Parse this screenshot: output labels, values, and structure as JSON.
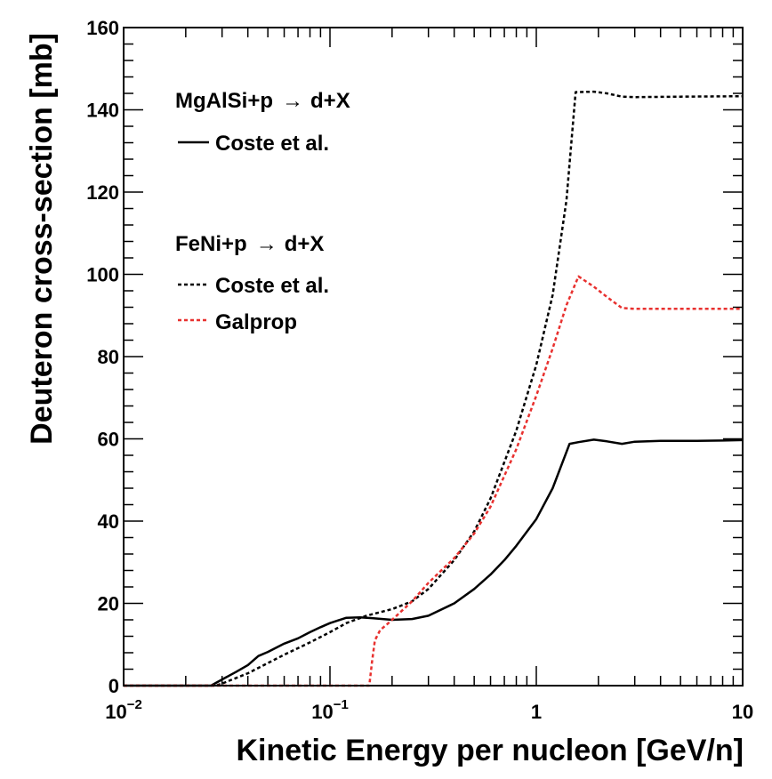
{
  "chart_data": {
    "type": "line",
    "title": "",
    "xlabel": "Kinetic Energy per nucleon [GeV/n]",
    "ylabel": "Deuteron cross-section [mb]",
    "xscale": "log",
    "xlim": [
      0.01,
      10
    ],
    "ylim": [
      0,
      160
    ],
    "grid": false,
    "x_ticks": [
      {
        "value": 0.01,
        "base": "10",
        "exp": "−2"
      },
      {
        "value": 0.1,
        "base": "10",
        "exp": "−1"
      },
      {
        "value": 1,
        "base": "1",
        "exp": ""
      },
      {
        "value": 10,
        "base": "10",
        "exp": ""
      }
    ],
    "y_ticks": [
      {
        "value": 0,
        "label": "0"
      },
      {
        "value": 20,
        "label": "20"
      },
      {
        "value": 40,
        "label": "40"
      },
      {
        "value": 60,
        "label": "60"
      },
      {
        "value": 80,
        "label": "80"
      },
      {
        "value": 100,
        "label": "100"
      },
      {
        "value": 120,
        "label": "120"
      },
      {
        "value": 140,
        "label": "140"
      },
      {
        "value": 160,
        "label": "160"
      }
    ],
    "legend": {
      "placement": "top-left",
      "groups": [
        {
          "header": "MgAlSi+p",
          "arrow": "→",
          "product": "d+X",
          "entries": [
            {
              "label": "Coste et al.",
              "series": 0
            }
          ]
        },
        {
          "header": "FeNi+p",
          "arrow": "→",
          "product": "d+X",
          "entries": [
            {
              "label": "Coste et al.",
              "series": 1
            },
            {
              "label": "Galprop",
              "series": 2
            }
          ]
        }
      ]
    },
    "series": [
      {
        "name": "MgAlSi+p → d+X, Coste et al.",
        "color": "#000000",
        "dash": "solid",
        "points": [
          [
            0.01,
            0
          ],
          [
            0.0265,
            0
          ],
          [
            0.03,
            1.5
          ],
          [
            0.035,
            3.3
          ],
          [
            0.04,
            5
          ],
          [
            0.045,
            7.2
          ],
          [
            0.05,
            8.2
          ],
          [
            0.06,
            10.2
          ],
          [
            0.07,
            11.5
          ],
          [
            0.08,
            13
          ],
          [
            0.09,
            14.2
          ],
          [
            0.1,
            15.2
          ],
          [
            0.12,
            16.5
          ],
          [
            0.14,
            16.6
          ],
          [
            0.16,
            16.4
          ],
          [
            0.18,
            16.2
          ],
          [
            0.2,
            16.0
          ],
          [
            0.25,
            16.2
          ],
          [
            0.3,
            17
          ],
          [
            0.4,
            20
          ],
          [
            0.5,
            23.5
          ],
          [
            0.6,
            27
          ],
          [
            0.7,
            30.5
          ],
          [
            0.8,
            34
          ],
          [
            1.0,
            40.5
          ],
          [
            1.2,
            48
          ],
          [
            1.45,
            58.8
          ],
          [
            1.6,
            59.2
          ],
          [
            1.9,
            59.8
          ],
          [
            2.2,
            59.4
          ],
          [
            2.6,
            58.8
          ],
          [
            3.0,
            59.3
          ],
          [
            4.0,
            59.5
          ],
          [
            6.0,
            59.5
          ],
          [
            8.0,
            59.6
          ],
          [
            10,
            59.7
          ]
        ]
      },
      {
        "name": "FeNi+p → d+X, Coste et al.",
        "color": "#000000",
        "dash": "dotted",
        "points": [
          [
            0.01,
            0
          ],
          [
            0.028,
            0
          ],
          [
            0.03,
            0.5
          ],
          [
            0.04,
            3
          ],
          [
            0.05,
            5.5
          ],
          [
            0.06,
            7.5
          ],
          [
            0.08,
            10.5
          ],
          [
            0.1,
            13
          ],
          [
            0.12,
            15.2
          ],
          [
            0.15,
            17
          ],
          [
            0.2,
            18.6
          ],
          [
            0.25,
            20.5
          ],
          [
            0.3,
            23.5
          ],
          [
            0.4,
            30.5
          ],
          [
            0.5,
            37.5
          ],
          [
            0.6,
            45.5
          ],
          [
            0.8,
            62
          ],
          [
            1.0,
            78
          ],
          [
            1.2,
            95
          ],
          [
            1.4,
            118
          ],
          [
            1.55,
            144.3
          ],
          [
            1.9,
            144.4
          ],
          [
            2.2,
            144
          ],
          [
            2.6,
            143.2
          ],
          [
            3.0,
            143.1
          ],
          [
            5.0,
            143.2
          ],
          [
            10,
            143.3
          ]
        ]
      },
      {
        "name": "FeNi+p → d+X, Galprop",
        "color": "#e8312f",
        "dash": "dotted",
        "points": [
          [
            0.01,
            0
          ],
          [
            0.155,
            0
          ],
          [
            0.16,
            6
          ],
          [
            0.165,
            11
          ],
          [
            0.175,
            13.5
          ],
          [
            0.19,
            15
          ],
          [
            0.21,
            17
          ],
          [
            0.25,
            20.5
          ],
          [
            0.3,
            25
          ],
          [
            0.4,
            31
          ],
          [
            0.5,
            37
          ],
          [
            0.6,
            43.5
          ],
          [
            0.8,
            57.5
          ],
          [
            1.0,
            70.5
          ],
          [
            1.2,
            82
          ],
          [
            1.4,
            92.5
          ],
          [
            1.6,
            99.5
          ],
          [
            1.9,
            97
          ],
          [
            2.2,
            94.5
          ],
          [
            2.6,
            91.8
          ],
          [
            3.0,
            91.6
          ],
          [
            5.0,
            91.6
          ],
          [
            10,
            91.6
          ]
        ]
      }
    ]
  }
}
